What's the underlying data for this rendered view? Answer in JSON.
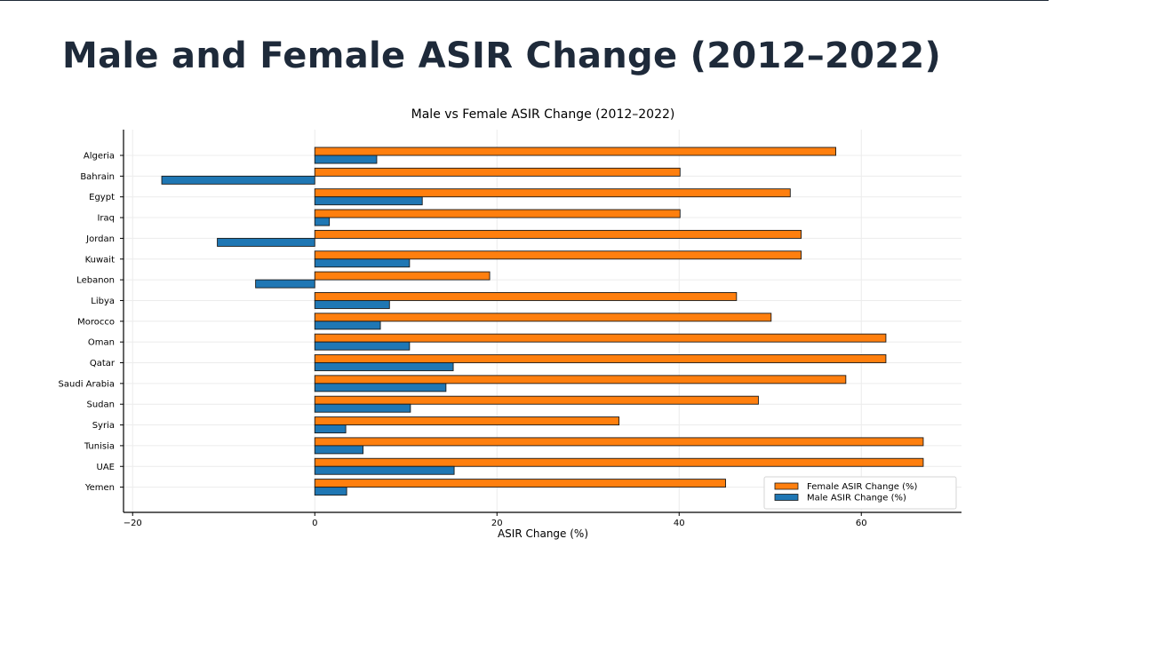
{
  "slide": {
    "title": "Male and Female ASIR Change (2012–2022)"
  },
  "chart_data": {
    "type": "bar",
    "orientation": "horizontal",
    "title": "Male vs Female ASIR Change (2012–2022)",
    "xlabel": "ASIR Change (%)",
    "ylabel": "",
    "xlim": [
      -21,
      71
    ],
    "xticks": [
      -20,
      0,
      20,
      40,
      60
    ],
    "xtick_labels": [
      "−20",
      "0",
      "20",
      "40",
      "60"
    ],
    "grid": true,
    "legend_position": "bottom-right",
    "categories": [
      "Algeria",
      "Bahrain",
      "Egypt",
      "Iraq",
      "Jordan",
      "Kuwait",
      "Lebanon",
      "Libya",
      "Morocco",
      "Oman",
      "Qatar",
      "Saudi Arabia",
      "Sudan",
      "Syria",
      "Tunisia",
      "UAE",
      "Yemen"
    ],
    "series": [
      {
        "name": "Female ASIR Change (%)",
        "color": "#ff7f0e",
        "values": [
          57.2,
          40.1,
          52.2,
          40.1,
          53.4,
          53.4,
          19.2,
          46.3,
          50.1,
          62.7,
          62.7,
          58.3,
          48.7,
          33.4,
          66.8,
          66.8,
          45.1
        ]
      },
      {
        "name": "Male ASIR Change (%)",
        "color": "#1f77b4",
        "values": [
          6.8,
          -16.8,
          11.8,
          1.6,
          -10.7,
          10.4,
          -6.5,
          8.2,
          7.2,
          10.4,
          15.2,
          14.4,
          10.5,
          3.4,
          5.3,
          15.3,
          3.5
        ]
      }
    ]
  }
}
